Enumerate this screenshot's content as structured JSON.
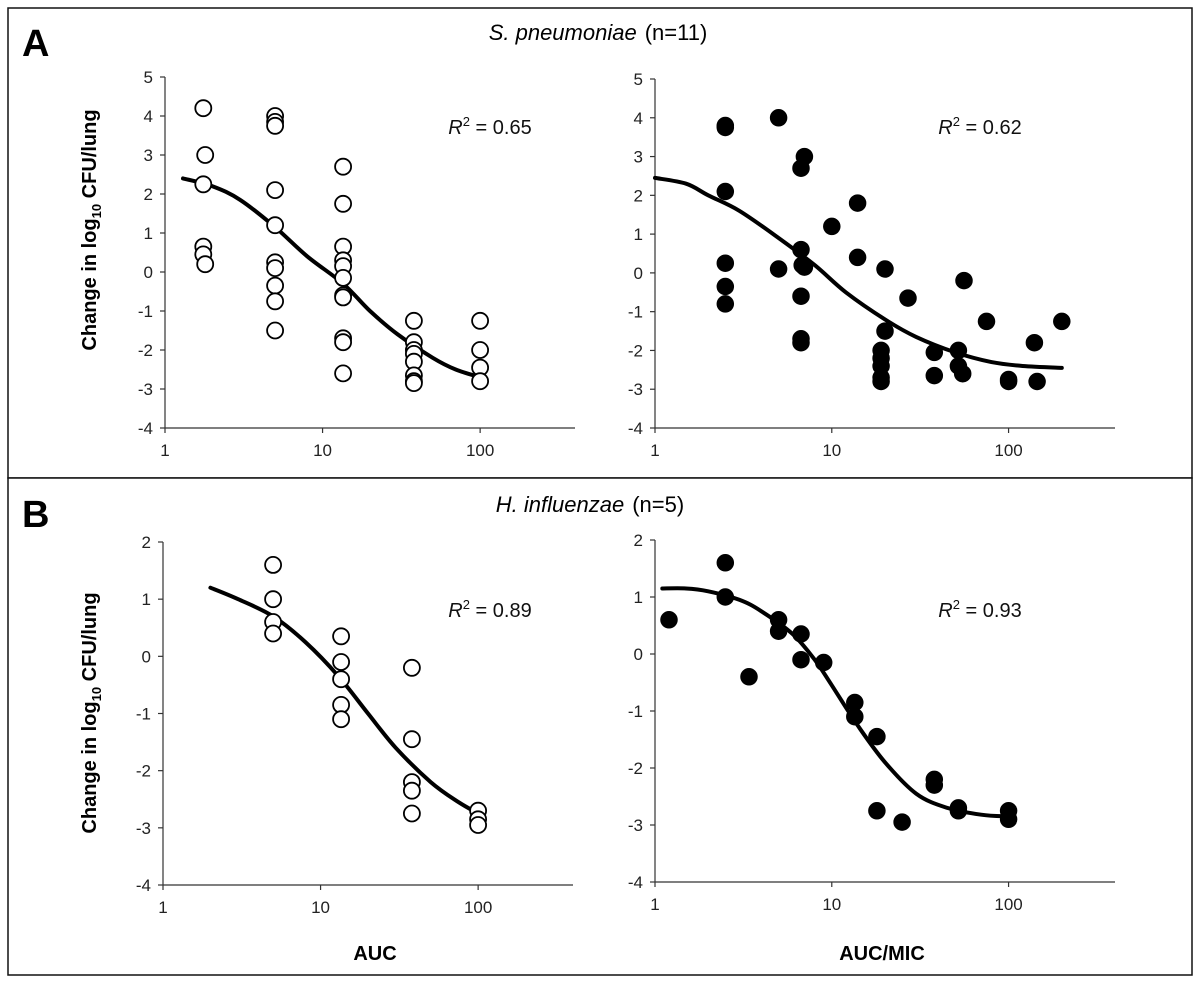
{
  "figure": {
    "panels": [
      {
        "letter": "A",
        "organism": "S. pneumoniae",
        "n_label": "(n=11)",
        "ylabel": {
          "pre": "Change in log",
          "sub": "10",
          "post": " CFU/lung"
        }
      },
      {
        "letter": "B",
        "organism": "H. influenzae",
        "n_label": "(n=5)",
        "ylabel": {
          "pre": "Change in log",
          "sub": "10",
          "post": " CFU/lung"
        }
      }
    ],
    "xlabels": [
      "AUC",
      "AUC/MIC"
    ]
  },
  "chart_data": [
    {
      "type": "scatter",
      "panel": "A",
      "organism": "S. pneumoniae",
      "marker": "open",
      "xscale": "log",
      "xlim": [
        1,
        400
      ],
      "ylim": [
        -4,
        5
      ],
      "xticks": [
        1,
        10,
        100
      ],
      "xtick_labels": [
        "1",
        "10",
        "100"
      ],
      "yticks": [
        -4,
        -3,
        -2,
        -1,
        0,
        1,
        2,
        3,
        4,
        5
      ],
      "ytick_labels": [
        "-4",
        "-3",
        "-2",
        "-1",
        "0",
        "1",
        "2",
        "3",
        "4",
        "5"
      ],
      "xlabel": "",
      "r2": {
        "label": "R",
        "sup": "2",
        "value": " = 0.65"
      },
      "points": [
        [
          1.75,
          4.2
        ],
        [
          1.8,
          3.0
        ],
        [
          1.75,
          2.25
        ],
        [
          1.75,
          0.65
        ],
        [
          1.75,
          0.45
        ],
        [
          1.8,
          0.2
        ],
        [
          5,
          4.0
        ],
        [
          5,
          3.85
        ],
        [
          5,
          3.75
        ],
        [
          5,
          2.1
        ],
        [
          5,
          1.2
        ],
        [
          5,
          0.25
        ],
        [
          5,
          0.1
        ],
        [
          5,
          -0.35
        ],
        [
          5,
          -0.75
        ],
        [
          5,
          -1.5
        ],
        [
          13.5,
          2.7
        ],
        [
          13.5,
          1.75
        ],
        [
          13.5,
          0.65
        ],
        [
          13.5,
          0.3
        ],
        [
          13.5,
          0.15
        ],
        [
          13.5,
          -0.15
        ],
        [
          13.5,
          -0.6
        ],
        [
          13.5,
          -0.65
        ],
        [
          13.5,
          -1.7
        ],
        [
          13.5,
          -1.8
        ],
        [
          13.5,
          -2.6
        ],
        [
          38,
          -1.25
        ],
        [
          38,
          -1.8
        ],
        [
          38,
          -2.0
        ],
        [
          38,
          -2.1
        ],
        [
          38,
          -2.3
        ],
        [
          38,
          -2.65
        ],
        [
          38,
          -2.8
        ],
        [
          38,
          -2.85
        ],
        [
          100,
          -1.25
        ],
        [
          100,
          -2.0
        ],
        [
          100,
          -2.45
        ],
        [
          100,
          -2.8
        ]
      ],
      "fit_curve": [
        [
          1.3,
          2.4
        ],
        [
          2,
          2.2
        ],
        [
          3,
          1.85
        ],
        [
          5,
          1.15
        ],
        [
          8,
          0.4
        ],
        [
          13.5,
          -0.3
        ],
        [
          20,
          -1.0
        ],
        [
          30,
          -1.6
        ],
        [
          50,
          -2.2
        ],
        [
          70,
          -2.5
        ],
        [
          100,
          -2.7
        ]
      ]
    },
    {
      "type": "scatter",
      "panel": "A",
      "organism": "S. pneumoniae",
      "marker": "filled",
      "xscale": "log",
      "xlim": [
        1,
        400
      ],
      "ylim": [
        -4,
        5
      ],
      "xticks": [
        1,
        10,
        100
      ],
      "xtick_labels": [
        "1",
        "10",
        "100"
      ],
      "yticks": [
        -4,
        -3,
        -2,
        -1,
        0,
        1,
        2,
        3,
        4,
        5
      ],
      "ytick_labels": [
        "-4",
        "-3",
        "-2",
        "-1",
        "0",
        "1",
        "2",
        "3",
        "4",
        "5"
      ],
      "xlabel": "",
      "r2": {
        "label": "R",
        "sup": "2",
        "value": " = 0.62"
      },
      "points": [
        [
          2.5,
          3.8
        ],
        [
          2.5,
          3.75
        ],
        [
          2.5,
          2.1
        ],
        [
          2.5,
          0.25
        ],
        [
          2.5,
          -0.35
        ],
        [
          2.5,
          -0.8
        ],
        [
          5,
          4.0
        ],
        [
          5,
          0.1
        ],
        [
          7,
          3.0
        ],
        [
          6.7,
          2.7
        ],
        [
          6.7,
          0.6
        ],
        [
          6.8,
          0.2
        ],
        [
          7,
          0.15
        ],
        [
          6.7,
          -0.6
        ],
        [
          6.7,
          -1.7
        ],
        [
          6.7,
          -1.8
        ],
        [
          10,
          1.2
        ],
        [
          14,
          1.8
        ],
        [
          14,
          0.4
        ],
        [
          19,
          -2.0
        ],
        [
          19,
          -2.2
        ],
        [
          19,
          -2.4
        ],
        [
          19,
          -2.7
        ],
        [
          19,
          -2.8
        ],
        [
          20,
          -1.5
        ],
        [
          20,
          0.1
        ],
        [
          27,
          -0.65
        ],
        [
          38,
          -2.05
        ],
        [
          38,
          -2.65
        ],
        [
          52,
          -2.0
        ],
        [
          52,
          -2.4
        ],
        [
          55,
          -2.6
        ],
        [
          56,
          -0.2
        ],
        [
          75,
          -1.25
        ],
        [
          100,
          -2.75
        ],
        [
          100,
          -2.8
        ],
        [
          140,
          -1.8
        ],
        [
          145,
          -2.8
        ],
        [
          200,
          -1.25
        ]
      ],
      "fit_curve": [
        [
          1,
          2.45
        ],
        [
          1.5,
          2.3
        ],
        [
          2,
          2.0
        ],
        [
          3,
          1.6
        ],
        [
          5,
          0.9
        ],
        [
          8,
          0.2
        ],
        [
          12,
          -0.5
        ],
        [
          20,
          -1.2
        ],
        [
          30,
          -1.65
        ],
        [
          50,
          -2.05
        ],
        [
          80,
          -2.3
        ],
        [
          120,
          -2.4
        ],
        [
          200,
          -2.45
        ]
      ]
    },
    {
      "type": "scatter",
      "panel": "B",
      "organism": "H. influenzae",
      "marker": "open",
      "xscale": "log",
      "xlim": [
        1,
        400
      ],
      "ylim": [
        -4,
        2
      ],
      "xticks": [
        1,
        10,
        100
      ],
      "xtick_labels": [
        "1",
        "10",
        "100"
      ],
      "yticks": [
        -4,
        -3,
        -2,
        -1,
        0,
        1,
        2
      ],
      "ytick_labels": [
        "-4",
        "-3",
        "-2",
        "-1",
        "0",
        "1",
        "2"
      ],
      "xlabel": "AUC",
      "r2": {
        "label": "R",
        "sup": "2",
        "value": " = 0.89"
      },
      "points": [
        [
          5,
          1.6
        ],
        [
          5,
          1.0
        ],
        [
          5,
          0.6
        ],
        [
          5,
          0.4
        ],
        [
          13.5,
          0.35
        ],
        [
          13.5,
          -0.1
        ],
        [
          13.5,
          -0.4
        ],
        [
          13.5,
          -0.85
        ],
        [
          13.5,
          -1.1
        ],
        [
          38,
          -0.2
        ],
        [
          38,
          -1.45
        ],
        [
          38,
          -2.2
        ],
        [
          38,
          -2.35
        ],
        [
          38,
          -2.75
        ],
        [
          100,
          -2.7
        ],
        [
          100,
          -2.85
        ],
        [
          100,
          -2.95
        ]
      ],
      "fit_curve": [
        [
          2,
          1.2
        ],
        [
          3,
          1.0
        ],
        [
          5,
          0.7
        ],
        [
          8,
          0.25
        ],
        [
          13,
          -0.35
        ],
        [
          20,
          -1.0
        ],
        [
          30,
          -1.6
        ],
        [
          50,
          -2.2
        ],
        [
          75,
          -2.55
        ],
        [
          100,
          -2.75
        ]
      ]
    },
    {
      "type": "scatter",
      "panel": "B",
      "organism": "H. influenzae",
      "marker": "filled",
      "xscale": "log",
      "xlim": [
        1,
        400
      ],
      "ylim": [
        -4,
        2
      ],
      "xticks": [
        1,
        10,
        100
      ],
      "xtick_labels": [
        "1",
        "10",
        "100"
      ],
      "yticks": [
        -4,
        -3,
        -2,
        -1,
        0,
        1,
        2
      ],
      "ytick_labels": [
        "-4",
        "-3",
        "-2",
        "-1",
        "0",
        "1",
        "2"
      ],
      "xlabel": "AUC/MIC",
      "r2": {
        "label": "R",
        "sup": "2",
        "value": " = 0.93"
      },
      "points": [
        [
          1.2,
          0.6
        ],
        [
          2.5,
          1.6
        ],
        [
          2.5,
          1.0
        ],
        [
          3.4,
          -0.4
        ],
        [
          5,
          0.6
        ],
        [
          5,
          0.4
        ],
        [
          6.7,
          0.35
        ],
        [
          6.7,
          -0.1
        ],
        [
          9,
          -0.15
        ],
        [
          13.5,
          -0.85
        ],
        [
          13.5,
          -1.1
        ],
        [
          18,
          -1.45
        ],
        [
          18,
          -2.75
        ],
        [
          25,
          -2.95
        ],
        [
          38,
          -2.2
        ],
        [
          38,
          -2.3
        ],
        [
          52,
          -2.7
        ],
        [
          52,
          -2.75
        ],
        [
          100,
          -2.75
        ],
        [
          100,
          -2.9
        ]
      ],
      "fit_curve": [
        [
          1.1,
          1.15
        ],
        [
          1.5,
          1.15
        ],
        [
          2,
          1.1
        ],
        [
          3,
          0.95
        ],
        [
          4,
          0.75
        ],
        [
          6,
          0.35
        ],
        [
          8,
          -0.1
        ],
        [
          10,
          -0.55
        ],
        [
          14,
          -1.25
        ],
        [
          20,
          -1.9
        ],
        [
          30,
          -2.45
        ],
        [
          45,
          -2.7
        ],
        [
          70,
          -2.82
        ],
        [
          100,
          -2.85
        ]
      ]
    }
  ]
}
